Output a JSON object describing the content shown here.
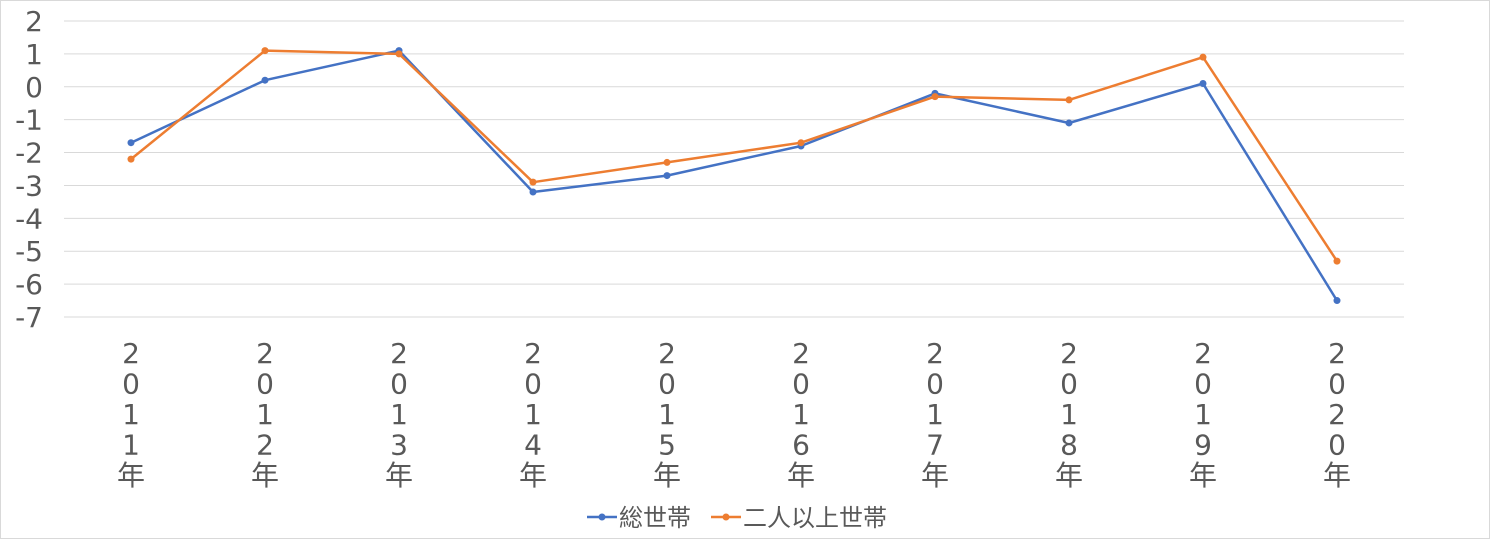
{
  "chart_data": {
    "type": "line",
    "title": "",
    "xlabel": "",
    "ylabel": "",
    "categories": [
      "2011年",
      "2012年",
      "2013年",
      "2014年",
      "2015年",
      "2016年",
      "2017年",
      "2018年",
      "2019年",
      "2020年"
    ],
    "yticks": [
      "2",
      "1",
      "0",
      "-1",
      "-2",
      "-3",
      "-4",
      "-5",
      "-6",
      "-7"
    ],
    "ylim": [
      -7,
      2
    ],
    "grid": true,
    "legend_position": "bottom",
    "series": [
      {
        "name": "総世帯",
        "color": "#4472c4",
        "values": [
          -1.7,
          0.2,
          1.1,
          -3.2,
          -2.7,
          -1.8,
          -0.2,
          -1.1,
          0.1,
          -6.5
        ]
      },
      {
        "name": "二人以上世帯",
        "color": "#ed7d31",
        "values": [
          -2.2,
          1.1,
          1.0,
          -2.9,
          -2.3,
          -1.7,
          -0.3,
          -0.4,
          0.9,
          -5.3
        ]
      }
    ]
  }
}
